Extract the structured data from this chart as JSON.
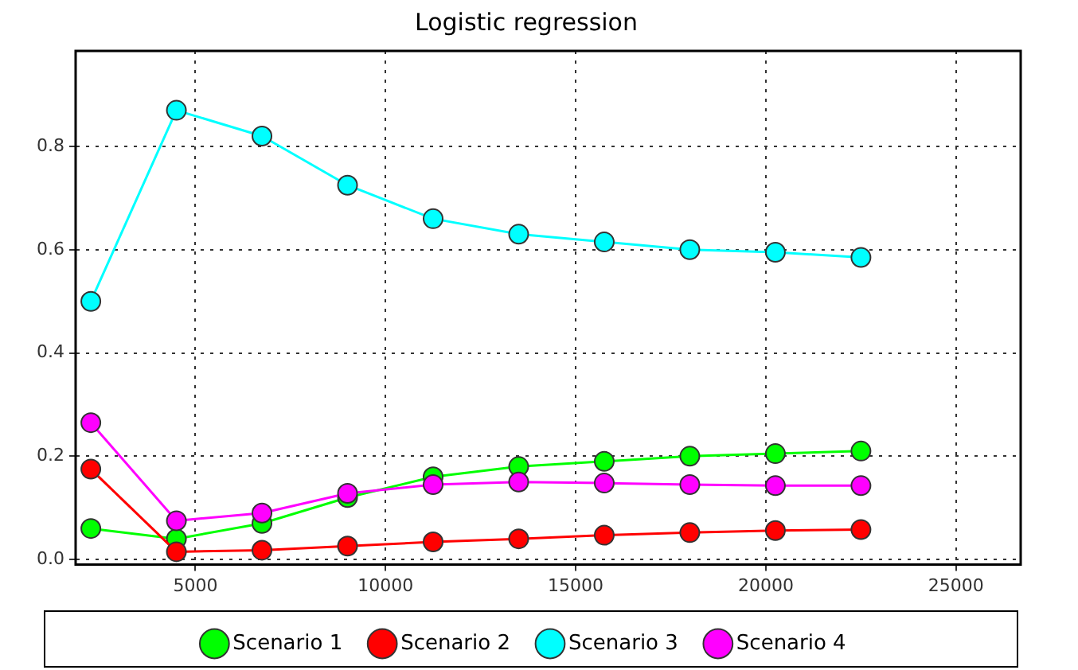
{
  "chart_data": {
    "type": "line",
    "title": "Logistic regression",
    "x": [
      2250,
      4500,
      6750,
      9000,
      11250,
      13500,
      15750,
      18000,
      20250,
      22500
    ],
    "series": [
      {
        "name": "Scenario 1",
        "color": "#00ff00",
        "values": [
          0.06,
          0.04,
          0.07,
          0.12,
          0.16,
          0.18,
          0.19,
          0.2,
          0.205,
          0.21
        ]
      },
      {
        "name": "Scenario 2",
        "color": "#ff0000",
        "values": [
          0.175,
          0.015,
          0.018,
          0.026,
          0.034,
          0.04,
          0.047,
          0.052,
          0.056,
          0.058
        ]
      },
      {
        "name": "Scenario 3",
        "color": "#00ffff",
        "values": [
          0.5,
          0.87,
          0.82,
          0.725,
          0.66,
          0.63,
          0.615,
          0.6,
          0.595,
          0.585
        ]
      },
      {
        "name": "Scenario 4",
        "color": "#ff00ff",
        "values": [
          0.265,
          0.075,
          0.09,
          0.128,
          0.145,
          0.15,
          0.148,
          0.145,
          0.143,
          0.143
        ]
      }
    ],
    "xlim": [
      1850,
      26700
    ],
    "xticks": [
      5000,
      10000,
      15000,
      20000,
      25000
    ],
    "ylim": [
      -0.01,
      0.985
    ],
    "yticks": [
      {
        "value": 0,
        "label": "0.0"
      },
      0.2,
      0.4,
      0.6,
      0.8
    ],
    "grid": true,
    "legend": "bottom",
    "marker": "circle",
    "line_style": "solid"
  }
}
